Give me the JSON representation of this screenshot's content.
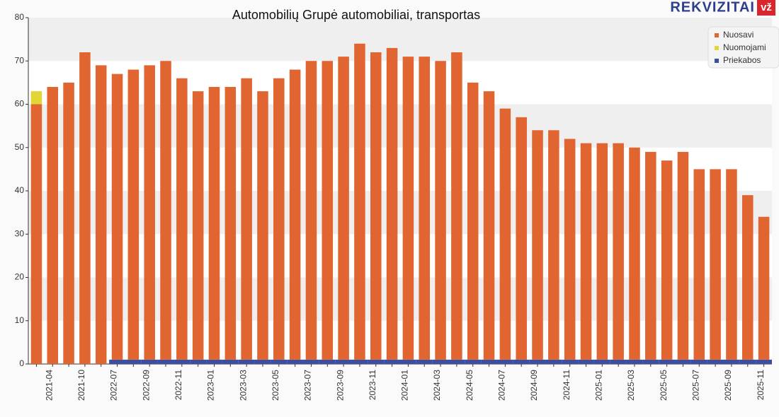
{
  "logo": "REKVIZITAI",
  "logo_badge": "vž",
  "chart_data": {
    "type": "stacked-bar",
    "title": "Automobilių Grupė automobiliai, transportas",
    "categories": [
      null,
      "2021-04",
      null,
      "2021-10",
      null,
      "2022-07",
      null,
      "2022-09",
      null,
      "2022-11",
      null,
      "2023-01",
      null,
      "2023-03",
      null,
      "2023-05",
      null,
      "2023-07",
      null,
      "2023-09",
      null,
      "2023-11",
      null,
      "2024-01",
      null,
      "2024-03",
      null,
      "2024-05",
      null,
      "2024-07",
      null,
      "2024-09",
      null,
      "2024-11",
      null,
      "2025-01",
      null,
      "2025-03",
      null,
      "2025-05",
      null,
      "2025-07",
      null,
      "2025-09",
      null,
      "2025-11"
    ],
    "series": [
      {
        "name": "Nuosavi",
        "color": "#e06530",
        "values": [
          60,
          64,
          65,
          72,
          69,
          66,
          67,
          68,
          69,
          65,
          62,
          63,
          63,
          65,
          62,
          65,
          67,
          69,
          69,
          70,
          73,
          71,
          72,
          70,
          70,
          69,
          71,
          64,
          62,
          58,
          56,
          53,
          53,
          51,
          50,
          50,
          50,
          49,
          48,
          46,
          48,
          44,
          44,
          44,
          38,
          33
        ]
      },
      {
        "name": "Nuomojami",
        "color": "#e3d533",
        "values": [
          3,
          0,
          0,
          0,
          0,
          0,
          0,
          0,
          0,
          0,
          0,
          0,
          0,
          0,
          0,
          0,
          0,
          0,
          0,
          0,
          0,
          0,
          0,
          0,
          0,
          0,
          0,
          0,
          0,
          0,
          0,
          0,
          0,
          0,
          0,
          0,
          0,
          0,
          0,
          0,
          0,
          0,
          0,
          0,
          0,
          0
        ]
      },
      {
        "name": "Priekabos",
        "color": "#3c4ea0",
        "values": [
          0,
          0,
          0,
          0,
          0,
          1,
          1,
          1,
          1,
          1,
          1,
          1,
          1,
          1,
          1,
          1,
          1,
          1,
          1,
          1,
          1,
          1,
          1,
          1,
          1,
          1,
          1,
          1,
          1,
          1,
          1,
          1,
          1,
          1,
          1,
          1,
          1,
          1,
          1,
          1,
          1,
          1,
          1,
          1,
          1,
          1
        ]
      }
    ],
    "ylim": [
      0,
      80
    ],
    "yticks": [
      0,
      10,
      20,
      30,
      40,
      50,
      60,
      70,
      80
    ],
    "grid": true,
    "legend": "top-right"
  }
}
